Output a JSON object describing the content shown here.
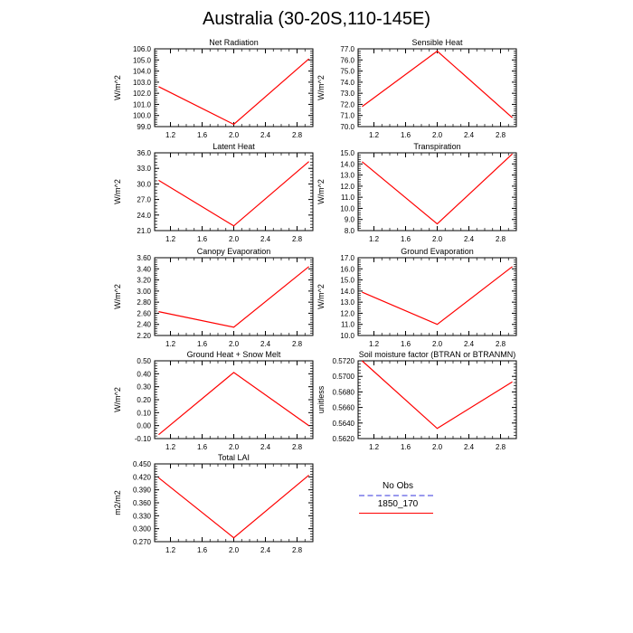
{
  "title": "Australia (30-20S,110-145E)",
  "colors": {
    "model_line": "#ff0000",
    "obs_line": "#9999ee",
    "axis": "#000000"
  },
  "legend": {
    "obs_label": "No Obs",
    "model_label": "1850_170"
  },
  "chart_data": [
    {
      "type": "line",
      "title": "Net Radiation",
      "ylabel": "W/m^2",
      "x": [
        1.05,
        2.0,
        2.95
      ],
      "values": [
        102.6,
        99.2,
        105.1
      ],
      "xlim": [
        1.0,
        3.0
      ],
      "ylim": [
        99.0,
        106.0
      ],
      "xticks": [
        "1.2",
        "1.6",
        "2.0",
        "2.4",
        "2.8"
      ],
      "yticks": [
        "99.0",
        "100.0",
        "101.0",
        "102.0",
        "103.0",
        "104.0",
        "105.0",
        "106.0"
      ],
      "series": [
        {
          "name": "1850_170",
          "values": [
            102.6,
            99.2,
            105.1
          ]
        }
      ]
    },
    {
      "type": "line",
      "title": "Sensible Heat",
      "ylabel": "W/m^2",
      "x": [
        1.05,
        2.0,
        2.95
      ],
      "values": [
        71.8,
        76.8,
        70.8
      ],
      "xlim": [
        1.0,
        3.0
      ],
      "ylim": [
        70.0,
        77.0
      ],
      "xticks": [
        "1.2",
        "1.6",
        "2.0",
        "2.4",
        "2.8"
      ],
      "yticks": [
        "70.0",
        "71.0",
        "72.0",
        "73.0",
        "74.0",
        "75.0",
        "76.0",
        "77.0"
      ],
      "series": [
        {
          "name": "1850_170",
          "values": [
            71.8,
            76.8,
            70.8
          ]
        }
      ]
    },
    {
      "type": "line",
      "title": "Latent Heat",
      "ylabel": "W/m^2",
      "x": [
        1.05,
        2.0,
        2.95
      ],
      "values": [
        30.7,
        21.9,
        34.3
      ],
      "xlim": [
        1.0,
        3.0
      ],
      "ylim": [
        21.0,
        36.0
      ],
      "xticks": [
        "1.2",
        "1.6",
        "2.0",
        "2.4",
        "2.8"
      ],
      "yticks": [
        "21.0",
        "24.0",
        "27.0",
        "30.0",
        "33.0",
        "36.0"
      ],
      "series": [
        {
          "name": "1850_170",
          "values": [
            30.7,
            21.9,
            34.3
          ]
        }
      ]
    },
    {
      "type": "line",
      "title": "Transpiration",
      "ylabel": "W/m^2",
      "x": [
        1.05,
        2.0,
        2.95
      ],
      "values": [
        14.2,
        8.6,
        14.9
      ],
      "xlim": [
        1.0,
        3.0
      ],
      "ylim": [
        8.0,
        15.0
      ],
      "xticks": [
        "1.2",
        "1.6",
        "2.0",
        "2.4",
        "2.8"
      ],
      "yticks": [
        "8.0",
        "9.0",
        "10.0",
        "11.0",
        "12.0",
        "13.0",
        "14.0",
        "15.0"
      ],
      "series": [
        {
          "name": "1850_170",
          "values": [
            14.2,
            8.6,
            14.9
          ]
        }
      ]
    },
    {
      "type": "line",
      "title": "Canopy Evaporation",
      "ylabel": "W/m^2",
      "x": [
        1.05,
        2.0,
        2.95
      ],
      "values": [
        2.63,
        2.35,
        3.44
      ],
      "xlim": [
        1.0,
        3.0
      ],
      "ylim": [
        2.2,
        3.6
      ],
      "xticks": [
        "1.2",
        "1.6",
        "2.0",
        "2.4",
        "2.8"
      ],
      "yticks": [
        "2.20",
        "2.40",
        "2.60",
        "2.80",
        "3.00",
        "3.20",
        "3.40",
        "3.60"
      ],
      "series": [
        {
          "name": "1850_170",
          "values": [
            2.63,
            2.35,
            3.44
          ]
        }
      ]
    },
    {
      "type": "line",
      "title": "Ground Evaporation",
      "ylabel": "W/m^2",
      "x": [
        1.05,
        2.0,
        2.95
      ],
      "values": [
        13.9,
        11.0,
        16.2
      ],
      "xlim": [
        1.0,
        3.0
      ],
      "ylim": [
        10.0,
        17.0
      ],
      "xticks": [
        "1.2",
        "1.6",
        "2.0",
        "2.4",
        "2.8"
      ],
      "yticks": [
        "10.0",
        "11.0",
        "12.0",
        "13.0",
        "14.0",
        "15.0",
        "16.0",
        "17.0"
      ],
      "series": [
        {
          "name": "1850_170",
          "values": [
            13.9,
            11.0,
            16.2
          ]
        }
      ]
    },
    {
      "type": "line",
      "title": "Ground Heat + Snow Melt",
      "ylabel": "W/m^2",
      "x": [
        1.05,
        2.0,
        2.95
      ],
      "values": [
        -0.07,
        0.41,
        0.0
      ],
      "xlim": [
        1.0,
        3.0
      ],
      "ylim": [
        -0.1,
        0.5
      ],
      "xticks": [
        "1.2",
        "1.6",
        "2.0",
        "2.4",
        "2.8"
      ],
      "yticks": [
        "-0.10",
        "0.00",
        "0.10",
        "0.20",
        "0.30",
        "0.40",
        "0.50"
      ],
      "series": [
        {
          "name": "1850_170",
          "values": [
            -0.07,
            0.41,
            0.0
          ]
        }
      ]
    },
    {
      "type": "line",
      "title": "Soil moisture factor (BTRAN or BTRANMN)",
      "ylabel": "unitless",
      "x": [
        1.05,
        2.0,
        2.95
      ],
      "values": [
        0.572,
        0.5633,
        0.5693
      ],
      "xlim": [
        1.0,
        3.0
      ],
      "ylim": [
        0.562,
        0.572
      ],
      "xticks": [
        "1.2",
        "1.6",
        "2.0",
        "2.4",
        "2.8"
      ],
      "yticks": [
        "0.5620",
        "0.5640",
        "0.5660",
        "0.5680",
        "0.5700",
        "0.5720"
      ],
      "series": [
        {
          "name": "1850_170",
          "values": [
            0.572,
            0.5633,
            0.5693
          ]
        }
      ]
    },
    {
      "type": "line",
      "title": "Total LAI",
      "ylabel": "m2/m2",
      "x": [
        1.05,
        2.0,
        2.95
      ],
      "values": [
        0.418,
        0.279,
        0.424
      ],
      "xlim": [
        1.0,
        3.0
      ],
      "ylim": [
        0.27,
        0.45
      ],
      "xticks": [
        "1.2",
        "1.6",
        "2.0",
        "2.4",
        "2.8"
      ],
      "yticks": [
        "0.270",
        "0.300",
        "0.330",
        "0.360",
        "0.390",
        "0.420",
        "0.450"
      ],
      "series": [
        {
          "name": "1850_170",
          "values": [
            0.418,
            0.279,
            0.424
          ]
        }
      ]
    }
  ]
}
